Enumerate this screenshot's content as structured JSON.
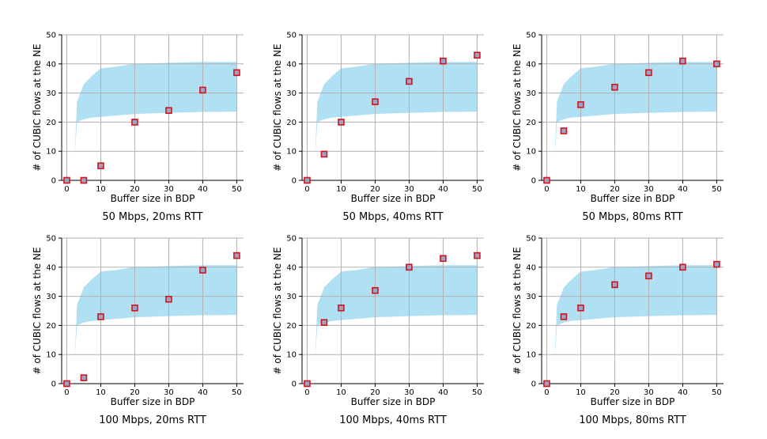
{
  "chart_data": [
    {
      "type": "scatter",
      "title": "50 Mbps, 20ms RTT",
      "xlabel": "Buffer size in BDP",
      "ylabel": "# of CUBIC flows at the NE",
      "xticks": [
        0,
        10,
        20,
        30,
        40,
        50
      ],
      "yticks": [
        0,
        10,
        20,
        30,
        40,
        50
      ],
      "xlim": [
        -1.5,
        52
      ],
      "ylim": [
        0,
        50
      ],
      "grid": true,
      "band": {
        "x": [
          2.3,
          3,
          5,
          7,
          10,
          14,
          20,
          30,
          40,
          50
        ],
        "lower": [
          7.5,
          20,
          21,
          21.5,
          21.8,
          22.2,
          22.8,
          23.2,
          23.5,
          23.6
        ],
        "upper": [
          7.5,
          27,
          33,
          35.5,
          38.5,
          39,
          40,
          40.4,
          40.7,
          40.7
        ]
      },
      "points": {
        "x": [
          0,
          5,
          10,
          20,
          30,
          40,
          50
        ],
        "y": [
          0,
          0,
          5,
          20,
          24,
          31,
          37
        ]
      }
    },
    {
      "type": "scatter",
      "title": "50 Mbps, 40ms RTT",
      "xlabel": "Buffer size in BDP",
      "ylabel": "# of CUBIC flows at the NE",
      "xticks": [
        0,
        10,
        20,
        30,
        40,
        50
      ],
      "yticks": [
        0,
        10,
        20,
        30,
        40,
        50
      ],
      "xlim": [
        -1.5,
        52
      ],
      "ylim": [
        0,
        50
      ],
      "grid": true,
      "band": {
        "x": [
          2.3,
          3,
          5,
          7,
          10,
          14,
          20,
          30,
          40,
          50
        ],
        "lower": [
          7.5,
          20,
          21,
          21.5,
          21.8,
          22.2,
          22.8,
          23.2,
          23.5,
          23.6
        ],
        "upper": [
          7.5,
          27,
          33,
          35.5,
          38.5,
          39,
          40,
          40.4,
          40.7,
          40.7
        ]
      },
      "points": {
        "x": [
          0,
          5,
          10,
          20,
          30,
          40,
          50
        ],
        "y": [
          0,
          9,
          20,
          27,
          34,
          41,
          43
        ]
      }
    },
    {
      "type": "scatter",
      "title": "50 Mbps, 80ms RTT",
      "xlabel": "Buffer size in BDP",
      "ylabel": "# of CUBIC flows at the NE",
      "xticks": [
        0,
        10,
        20,
        30,
        40,
        50
      ],
      "yticks": [
        0,
        10,
        20,
        30,
        40,
        50
      ],
      "xlim": [
        -1.5,
        52
      ],
      "ylim": [
        0,
        50
      ],
      "grid": true,
      "band": {
        "x": [
          2.3,
          3,
          5,
          7,
          10,
          14,
          20,
          30,
          40,
          50
        ],
        "lower": [
          7.5,
          20,
          21,
          21.5,
          21.8,
          22.2,
          22.8,
          23.2,
          23.5,
          23.6
        ],
        "upper": [
          7.5,
          27,
          33,
          35.5,
          38.5,
          39,
          40,
          40.4,
          40.7,
          40.7
        ]
      },
      "points": {
        "x": [
          0,
          5,
          10,
          20,
          30,
          40,
          50
        ],
        "y": [
          0,
          17,
          26,
          32,
          37,
          41,
          40
        ]
      }
    },
    {
      "type": "scatter",
      "title": "100 Mbps, 20ms RTT",
      "xlabel": "Buffer size in BDP",
      "ylabel": "# of CUBIC flows at the NE",
      "xticks": [
        0,
        10,
        20,
        30,
        40,
        50
      ],
      "yticks": [
        0,
        10,
        20,
        30,
        40,
        50
      ],
      "xlim": [
        -1.5,
        52
      ],
      "ylim": [
        0,
        50
      ],
      "grid": true,
      "band": {
        "x": [
          2.3,
          3,
          5,
          7,
          10,
          14,
          20,
          30,
          40,
          50
        ],
        "lower": [
          7.5,
          20,
          21,
          21.5,
          21.8,
          22.2,
          22.8,
          23.2,
          23.5,
          23.6
        ],
        "upper": [
          7.5,
          27,
          33,
          35.5,
          38.5,
          39,
          40,
          40.4,
          40.7,
          40.7
        ]
      },
      "points": {
        "x": [
          0,
          5,
          10,
          20,
          30,
          40,
          50
        ],
        "y": [
          0,
          2,
          23,
          26,
          29,
          39,
          44
        ]
      }
    },
    {
      "type": "scatter",
      "title": "100 Mbps, 40ms RTT",
      "xlabel": "Buffer size in BDP",
      "ylabel": "# of CUBIC flows at the NE",
      "xticks": [
        0,
        10,
        20,
        30,
        40,
        50
      ],
      "yticks": [
        0,
        10,
        20,
        30,
        40,
        50
      ],
      "xlim": [
        -1.5,
        52
      ],
      "ylim": [
        0,
        50
      ],
      "grid": true,
      "band": {
        "x": [
          2.3,
          3,
          5,
          7,
          10,
          14,
          20,
          30,
          40,
          50
        ],
        "lower": [
          7.5,
          20,
          21,
          21.5,
          21.8,
          22.2,
          22.8,
          23.2,
          23.5,
          23.6
        ],
        "upper": [
          7.5,
          27,
          33,
          35.5,
          38.5,
          39,
          40,
          40.4,
          40.7,
          40.7
        ]
      },
      "points": {
        "x": [
          0,
          5,
          10,
          20,
          30,
          40,
          50
        ],
        "y": [
          0,
          21,
          26,
          32,
          40,
          43,
          44
        ]
      }
    },
    {
      "type": "scatter",
      "title": "100 Mbps, 80ms RTT",
      "xlabel": "Buffer size in BDP",
      "ylabel": "# of CUBIC flows at the NE",
      "xticks": [
        0,
        10,
        20,
        30,
        40,
        50
      ],
      "yticks": [
        0,
        10,
        20,
        30,
        40,
        50
      ],
      "xlim": [
        -1.5,
        52
      ],
      "ylim": [
        0,
        50
      ],
      "grid": true,
      "band": {
        "x": [
          2.3,
          3,
          5,
          7,
          10,
          14,
          20,
          30,
          40,
          50
        ],
        "lower": [
          7.5,
          20,
          21,
          21.5,
          21.8,
          22.2,
          22.8,
          23.2,
          23.5,
          23.6
        ],
        "upper": [
          7.5,
          27,
          33,
          35.5,
          38.5,
          39,
          40,
          40.4,
          40.7,
          40.7
        ]
      },
      "points": {
        "x": [
          0,
          5,
          10,
          20,
          30,
          40,
          50
        ],
        "y": [
          0,
          23,
          26,
          34,
          37,
          40,
          41
        ]
      }
    }
  ],
  "colors": {
    "band_fill": "#b0e0f3",
    "marker_stroke": "#d4141c",
    "marker_inner": "#9aa3c8",
    "grid": "#b0b0b0",
    "axis": "#000000"
  }
}
